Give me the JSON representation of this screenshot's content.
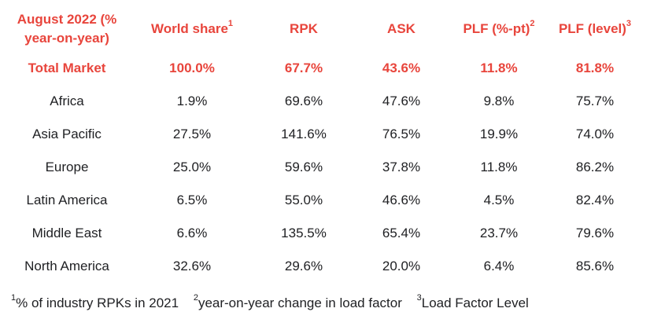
{
  "table": {
    "header": [
      {
        "label": "August 2022 (% year-on-year)",
        "sup": ""
      },
      {
        "label": "World share",
        "sup": "1"
      },
      {
        "label": "RPK",
        "sup": ""
      },
      {
        "label": "ASK",
        "sup": ""
      },
      {
        "label": "PLF (%-pt)",
        "sup": "2"
      },
      {
        "label": "PLF (level)",
        "sup": "3"
      }
    ],
    "rows": [
      [
        "Total Market",
        "100.0%",
        "67.7%",
        "43.6%",
        "11.8%",
        "81.8%"
      ],
      [
        "Africa",
        "1.9%",
        "69.6%",
        "47.6%",
        "9.8%",
        "75.7%"
      ],
      [
        "Asia Pacific",
        "27.5%",
        "141.6%",
        "76.5%",
        "19.9%",
        "74.0%"
      ],
      [
        "Europe",
        "25.0%",
        "59.6%",
        "37.8%",
        "11.8%",
        "86.2%"
      ],
      [
        "Latin America",
        "6.5%",
        "55.0%",
        "46.6%",
        "4.5%",
        "82.4%"
      ],
      [
        "Middle East",
        "6.6%",
        "135.5%",
        "65.4%",
        "23.7%",
        "79.6%"
      ],
      [
        "North America",
        "32.6%",
        "29.6%",
        "20.0%",
        "6.4%",
        "85.6%"
      ]
    ]
  },
  "footnotes": [
    {
      "sup": "1",
      "text": "% of industry RPKs in 2021"
    },
    {
      "sup": "2",
      "text": "year-on-year change in load factor"
    },
    {
      "sup": "3",
      "text": "Load Factor Level"
    }
  ],
  "colors": {
    "accent": "#e8453c",
    "text": "#202124"
  }
}
